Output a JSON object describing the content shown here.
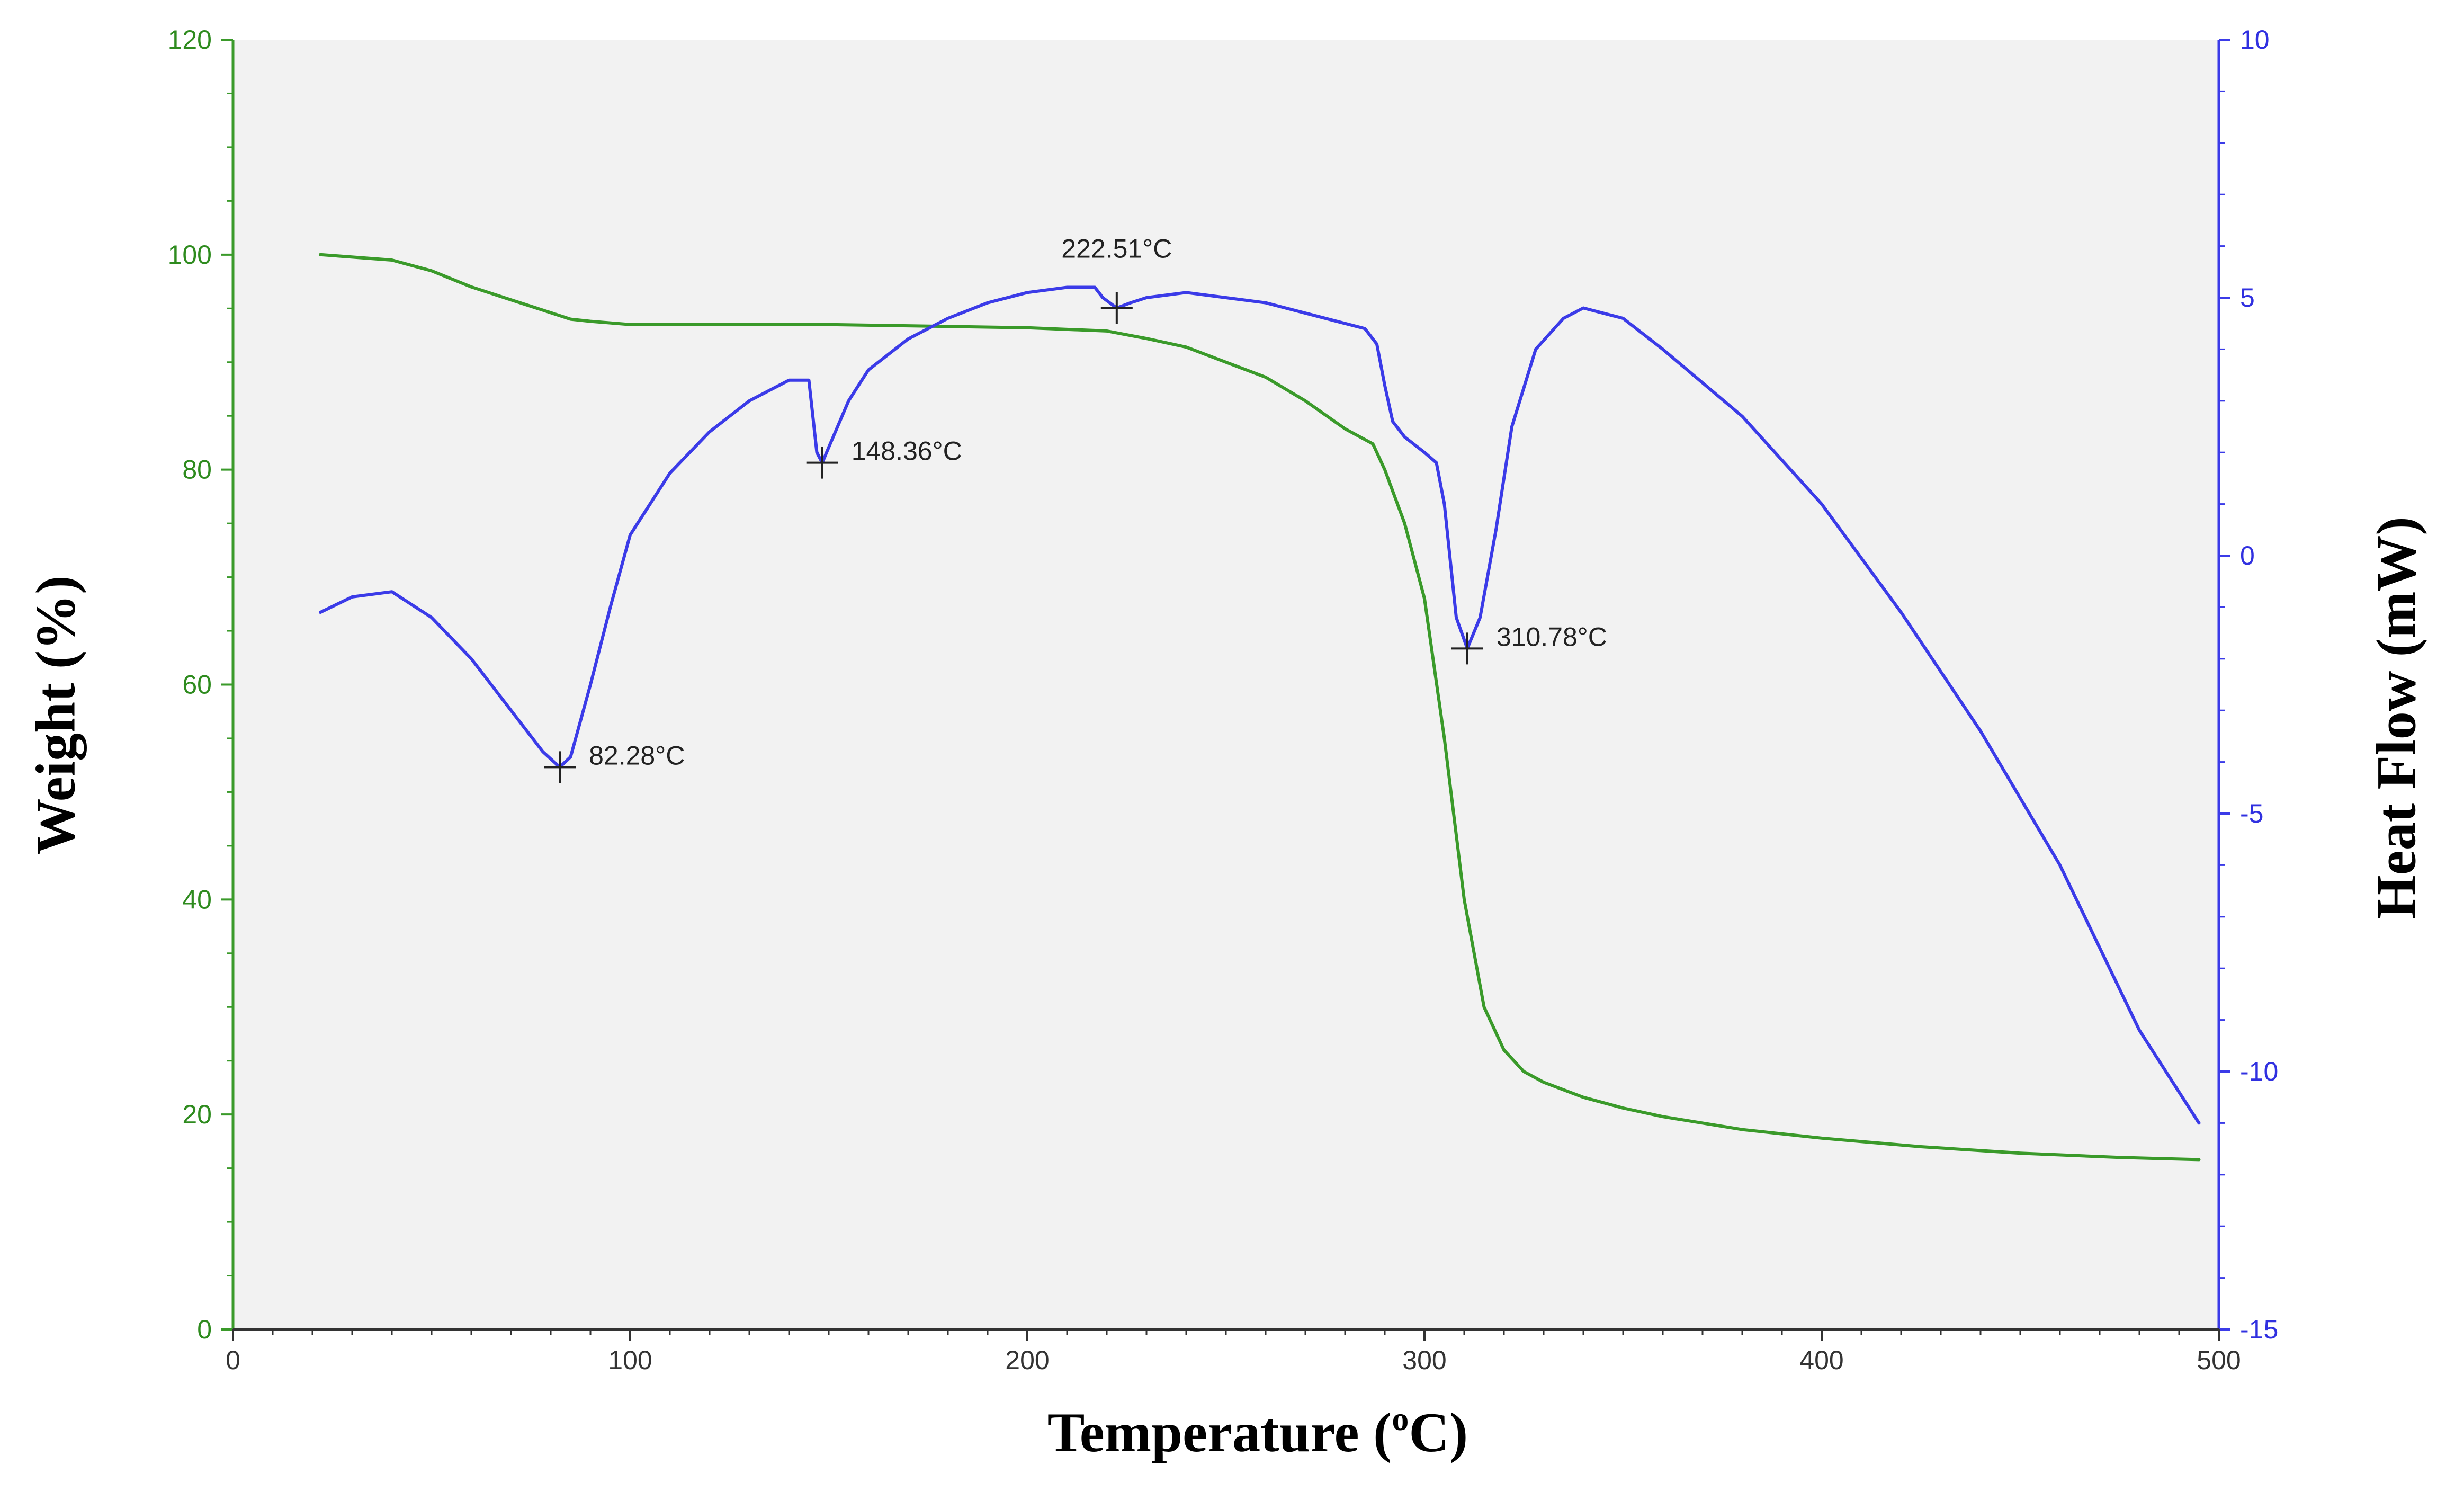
{
  "chart_data": {
    "type": "line",
    "xlabel": "Temperature (°C)",
    "xlabel_parts": {
      "main": "Temperature (",
      "sup": "o",
      "tail": "C)"
    },
    "ylabel_left": "Weight (%)",
    "ylabel_right": "Heat Flow (mW)",
    "xlim": [
      0,
      500
    ],
    "ylim_left": [
      0,
      120
    ],
    "ylim_right": [
      -15,
      10
    ],
    "x_ticks": [
      "0",
      "100",
      "200",
      "300",
      "400",
      "500"
    ],
    "y_left_ticks": [
      "0",
      "20",
      "40",
      "60",
      "80",
      "100",
      "120"
    ],
    "y_right_ticks": [
      "-15",
      "-10",
      "-5",
      "0",
      "5",
      "10"
    ],
    "grid": false,
    "colors": {
      "weight": "#3a9a2a",
      "heat_flow": "#3b3be8",
      "left_axis": "#2e8b1e",
      "right_axis": "#3030e0",
      "plot_background": "#f2f2f2"
    },
    "series": [
      {
        "axis": "left",
        "x": [
          22,
          40,
          50,
          60,
          70,
          80,
          85,
          90,
          100,
          150,
          200,
          220,
          230,
          240,
          250,
          260,
          270,
          280,
          287,
          290,
          295,
          300,
          305,
          310,
          315,
          320,
          325,
          330,
          340,
          350,
          360,
          380,
          400,
          425,
          450,
          475,
          495
        ],
        "values": [
          100,
          99.5,
          98.5,
          97,
          95.8,
          94.6,
          94,
          93.8,
          93.5,
          93.5,
          93.2,
          92.9,
          92.2,
          91.4,
          90,
          88.6,
          86.4,
          83.8,
          82.4,
          80,
          75,
          68,
          55,
          40,
          30,
          26,
          24,
          23,
          21.6,
          20.6,
          19.8,
          18.6,
          17.8,
          17,
          16.4,
          16,
          15.8
        ]
      },
      {
        "axis": "right",
        "x": [
          22,
          30,
          40,
          50,
          60,
          70,
          78,
          82.28,
          85,
          90,
          95,
          100,
          110,
          120,
          130,
          140,
          145,
          147,
          148.36,
          150,
          155,
          160,
          170,
          180,
          190,
          200,
          210,
          217,
          219,
          222.51,
          226,
          230,
          240,
          250,
          260,
          270,
          280,
          285,
          288,
          290,
          292,
          295,
          300,
          303,
          305,
          308,
          310.78,
          314,
          318,
          322,
          328,
          335,
          340,
          350,
          360,
          380,
          400,
          420,
          440,
          460,
          480,
          495
        ],
        "values": [
          -1.1,
          -0.8,
          -0.7,
          -1.2,
          -2.0,
          -3.0,
          -3.8,
          -4.1,
          -3.9,
          -2.5,
          -1.0,
          0.4,
          1.6,
          2.4,
          3.0,
          3.4,
          3.4,
          2.0,
          1.8,
          2.1,
          3.0,
          3.6,
          4.2,
          4.6,
          4.9,
          5.1,
          5.2,
          5.2,
          5.0,
          4.8,
          4.9,
          5.0,
          5.1,
          5.0,
          4.9,
          4.7,
          4.5,
          4.4,
          4.1,
          3.3,
          2.6,
          2.3,
          2.0,
          1.8,
          1.0,
          -1.2,
          -1.8,
          -1.2,
          0.5,
          2.5,
          4.0,
          4.6,
          4.8,
          4.6,
          4.0,
          2.7,
          1.0,
          -1.1,
          -3.4,
          -6.0,
          -9.2,
          -11.0
        ]
      }
    ],
    "annotations": [
      {
        "label": "82.28°C",
        "x": 82.28,
        "axis": "right",
        "value": -4.1
      },
      {
        "label": "148.36°C",
        "x": 148.36,
        "axis": "right",
        "value": 1.8
      },
      {
        "label": "222.51°C",
        "x": 222.51,
        "axis": "right",
        "value": 4.8
      },
      {
        "label": "310.78°C",
        "x": 310.78,
        "axis": "right",
        "value": -1.8
      }
    ]
  }
}
